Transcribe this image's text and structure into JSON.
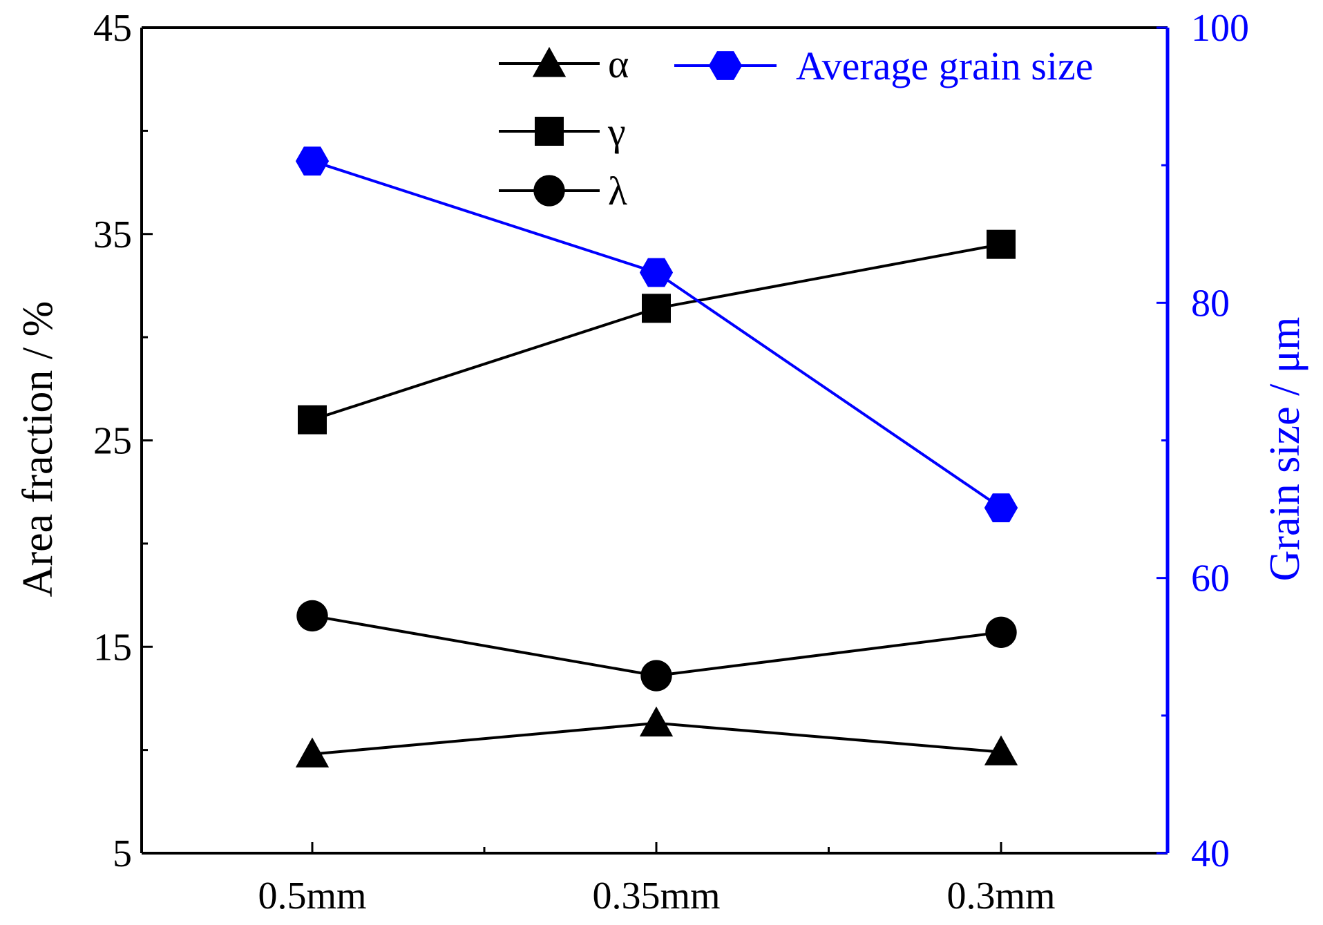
{
  "chart_data": {
    "type": "line",
    "categories": [
      "0.5mm",
      "0.35mm",
      "0.3mm"
    ],
    "series": [
      {
        "name": "α",
        "axis": "left",
        "marker": "triangle",
        "color": "#000000",
        "values": [
          9.8,
          11.3,
          9.9
        ]
      },
      {
        "name": "γ",
        "axis": "left",
        "marker": "square",
        "color": "#000000",
        "values": [
          26.0,
          31.4,
          34.5
        ]
      },
      {
        "name": "λ",
        "axis": "left",
        "marker": "circle",
        "color": "#000000",
        "values": [
          16.5,
          13.6,
          15.7
        ]
      },
      {
        "name": "Average grain size",
        "axis": "right",
        "marker": "hexagon",
        "color": "#0000ff",
        "values": [
          90.3,
          82.2,
          65.1
        ]
      }
    ],
    "left_axis": {
      "label": "Area fraction / %",
      "ylim": [
        5,
        45
      ],
      "ticks": [
        5,
        15,
        25,
        35,
        45
      ],
      "color": "#000000"
    },
    "right_axis": {
      "label": "Grain size / μm",
      "ylim": [
        40,
        100
      ],
      "ticks": [
        40,
        60,
        80,
        100
      ],
      "color": "#0000ff"
    },
    "legend": {
      "placement": "top"
    }
  }
}
